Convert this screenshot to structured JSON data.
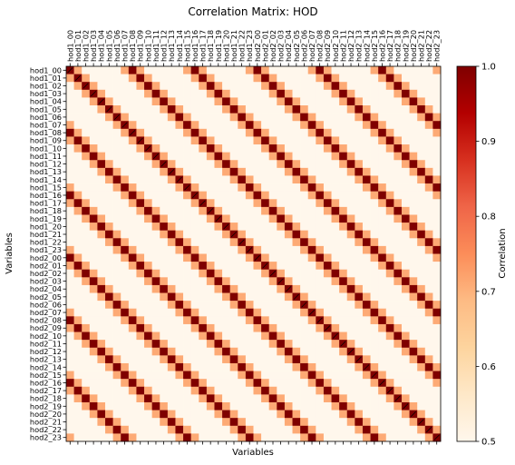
{
  "chart_data": {
    "type": "heatmap",
    "title": "Correlation Matrix: HOD",
    "xlabel": "Variables",
    "ylabel": "Variables",
    "variables": [
      "hod1_00",
      "hod1_01",
      "hod1_02",
      "hod1_03",
      "hod1_04",
      "hod1_05",
      "hod1_06",
      "hod1_07",
      "hod1_08",
      "hod1_09",
      "hod1_10",
      "hod1_11",
      "hod1_12",
      "hod1_13",
      "hod1_14",
      "hod1_15",
      "hod1_16",
      "hod1_17",
      "hod1_18",
      "hod1_19",
      "hod1_20",
      "hod1_21",
      "hod1_22",
      "hod1_23",
      "hod2_00",
      "hod2_01",
      "hod2_02",
      "hod2_03",
      "hod2_04",
      "hod2_05",
      "hod2_06",
      "hod2_07",
      "hod2_08",
      "hod2_09",
      "hod2_10",
      "hod2_11",
      "hod2_12",
      "hod2_13",
      "hod2_14",
      "hod2_15",
      "hod2_16",
      "hod2_17",
      "hod2_18",
      "hod2_19",
      "hod2_20",
      "hod2_21",
      "hod2_22",
      "hod2_23"
    ],
    "color_range": [
      0.5,
      1.0
    ],
    "colormap": "OrRd",
    "colorbar_label": "Correlation",
    "colorbar_ticks": [
      "0.5",
      "0.6",
      "0.7",
      "0.8",
      "0.9",
      "1.0"
    ],
    "colorbar_tick_values": [
      0.5,
      0.6,
      0.7,
      0.8,
      0.9,
      1.0
    ],
    "cell_rule": {
      "description": "correlation depends on circular offset d = (j - i) mod 8",
      "period": 8,
      "offset_values": {
        "0": 1.0,
        "1": 0.71,
        "2": 0.5,
        "3": 0.5,
        "4": 0.5,
        "5": 0.5,
        "6": 0.5,
        "7": 0.71
      }
    },
    "grid": false
  }
}
